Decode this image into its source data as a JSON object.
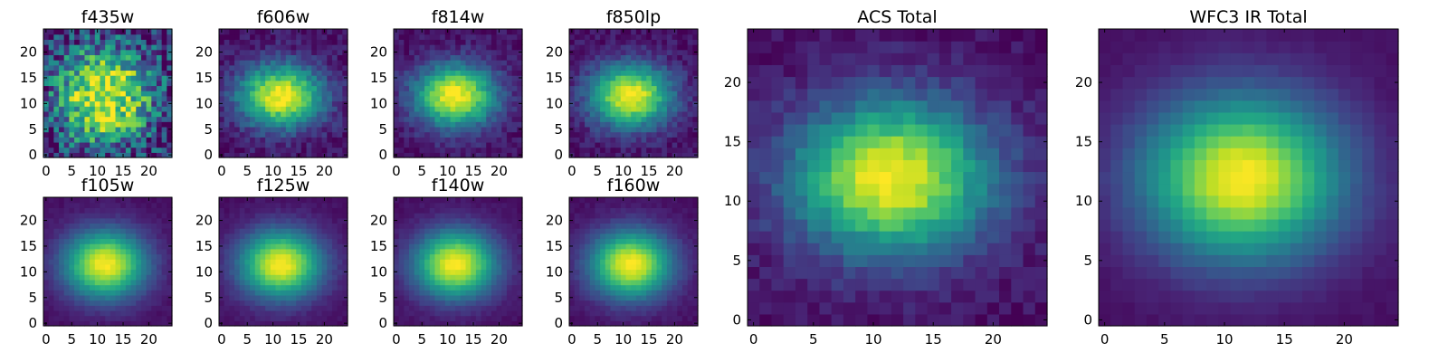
{
  "colormap": "viridis",
  "chart_data": [
    {
      "type": "heatmap",
      "title": "f435w",
      "grid_size": 25,
      "center": [
        11.5,
        11.5
      ],
      "sigma": [
        7,
        7
      ],
      "noise": 0.6,
      "xticks": [
        0,
        5,
        10,
        15,
        20
      ],
      "yticks": [
        0,
        5,
        10,
        15,
        20
      ],
      "xlim": [
        -0.5,
        24.5
      ],
      "ylim": [
        -0.5,
        24.5
      ]
    },
    {
      "type": "heatmap",
      "title": "f606w",
      "grid_size": 25,
      "center": [
        11.5,
        11.5
      ],
      "sigma": [
        5.8,
        4.3
      ],
      "noise": 0.18,
      "xticks": [
        0,
        5,
        10,
        15,
        20
      ],
      "yticks": [
        0,
        5,
        10,
        15,
        20
      ],
      "xlim": [
        -0.5,
        24.5
      ],
      "ylim": [
        -0.5,
        24.5
      ]
    },
    {
      "type": "heatmap",
      "title": "f814w",
      "grid_size": 25,
      "center": [
        11.5,
        11.5
      ],
      "sigma": [
        5.6,
        4.3
      ],
      "noise": 0.15,
      "xticks": [
        0,
        5,
        10,
        15,
        20
      ],
      "yticks": [
        0,
        5,
        10,
        15,
        20
      ],
      "xlim": [
        -0.5,
        24.5
      ],
      "ylim": [
        -0.5,
        24.5
      ]
    },
    {
      "type": "heatmap",
      "title": "f850lp",
      "grid_size": 25,
      "center": [
        11.5,
        11.5
      ],
      "sigma": [
        5.6,
        4.3
      ],
      "noise": 0.15,
      "xticks": [
        0,
        5,
        10,
        15,
        20
      ],
      "yticks": [
        0,
        5,
        10,
        15,
        20
      ],
      "xlim": [
        -0.5,
        24.5
      ],
      "ylim": [
        -0.5,
        24.5
      ]
    },
    {
      "type": "heatmap",
      "title": "f105w",
      "grid_size": 25,
      "center": [
        11.5,
        11.5
      ],
      "sigma": [
        5.6,
        4.6
      ],
      "noise": 0.05,
      "xticks": [
        0,
        5,
        10,
        15,
        20
      ],
      "yticks": [
        0,
        5,
        10,
        15,
        20
      ],
      "xlim": [
        -0.5,
        24.5
      ],
      "ylim": [
        -0.5,
        24.5
      ]
    },
    {
      "type": "heatmap",
      "title": "f125w",
      "grid_size": 25,
      "center": [
        11.5,
        11.5
      ],
      "sigma": [
        5.6,
        4.6
      ],
      "noise": 0.05,
      "xticks": [
        0,
        5,
        10,
        15,
        20
      ],
      "yticks": [
        0,
        5,
        10,
        15,
        20
      ],
      "xlim": [
        -0.5,
        24.5
      ],
      "ylim": [
        -0.5,
        24.5
      ]
    },
    {
      "type": "heatmap",
      "title": "f140w",
      "grid_size": 25,
      "center": [
        11.5,
        11.5
      ],
      "sigma": [
        5.6,
        4.6
      ],
      "noise": 0.05,
      "xticks": [
        0,
        5,
        10,
        15,
        20
      ],
      "yticks": [
        0,
        5,
        10,
        15,
        20
      ],
      "xlim": [
        -0.5,
        24.5
      ],
      "ylim": [
        -0.5,
        24.5
      ]
    },
    {
      "type": "heatmap",
      "title": "f160w",
      "grid_size": 25,
      "center": [
        11.5,
        11.5
      ],
      "sigma": [
        5.6,
        4.6
      ],
      "noise": 0.05,
      "xticks": [
        0,
        5,
        10,
        15,
        20
      ],
      "yticks": [
        0,
        5,
        10,
        15,
        20
      ],
      "xlim": [
        -0.5,
        24.5
      ],
      "ylim": [
        -0.5,
        24.5
      ]
    },
    {
      "type": "heatmap",
      "title": "ACS Total",
      "grid_size": 25,
      "center": [
        11.5,
        12
      ],
      "sigma": [
        5.8,
        4.5
      ],
      "noise": 0.12,
      "xticks": [
        0,
        5,
        10,
        15,
        20
      ],
      "yticks": [
        0,
        5,
        10,
        15,
        20
      ],
      "xlim": [
        -0.5,
        24.5
      ],
      "ylim": [
        -0.5,
        24.5
      ]
    },
    {
      "type": "heatmap",
      "title": "WFC3 IR Total",
      "grid_size": 25,
      "center": [
        11.5,
        12
      ],
      "sigma": [
        5.8,
        4.8
      ],
      "noise": 0.03,
      "xticks": [
        0,
        5,
        10,
        15,
        20
      ],
      "yticks": [
        0,
        5,
        10,
        15,
        20
      ],
      "xlim": [
        -0.5,
        24.5
      ],
      "ylim": [
        -0.5,
        24.5
      ]
    }
  ]
}
